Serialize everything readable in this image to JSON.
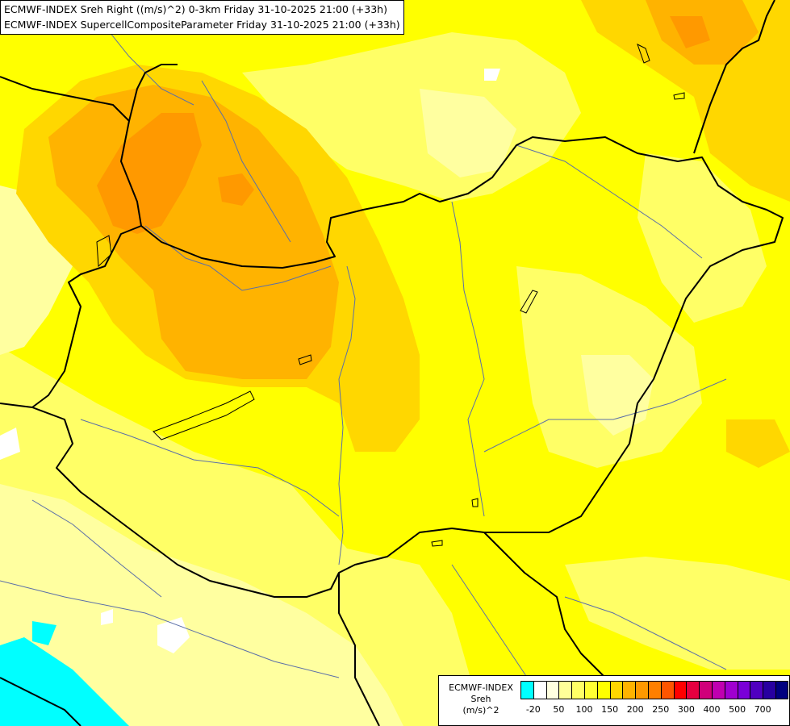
{
  "header": {
    "line1": "ECMWF-INDEX Sreh Right ((m/s)^2) 0-3km Friday 31-10-2025 21:00 (+33h)",
    "line2": "ECMWF-INDEX SupercellCompositeParameter Friday 31-10-2025 21:00 (+33h)"
  },
  "legend": {
    "title_lines": [
      "ECMWF-INDEX",
      "Sreh",
      "(m/s)^2"
    ],
    "colors": [
      "#00ffff",
      "#ffffff",
      "#ffffe0",
      "#ffff99",
      "#ffff66",
      "#ffff33",
      "#ffff00",
      "#ffd700",
      "#ffb300",
      "#ff9900",
      "#ff7f00",
      "#ff5500",
      "#ff0000",
      "#e60040",
      "#d0007a",
      "#c000b0",
      "#a000d0",
      "#7a00d8",
      "#5000c0",
      "#2800a0",
      "#000080"
    ],
    "tick_labels": [
      "-20",
      "50",
      "100",
      "150",
      "200",
      "250",
      "300",
      "400",
      "500",
      "700"
    ]
  },
  "colors": {
    "pale_yellow": "#ffffa0",
    "light_yellow": "#ffff66",
    "yellow": "#ffff00",
    "gold": "#ffd700",
    "orange": "#ffb300",
    "dark_orange": "#ff9900",
    "cyan": "#00ffff",
    "white": "#ffffff"
  }
}
